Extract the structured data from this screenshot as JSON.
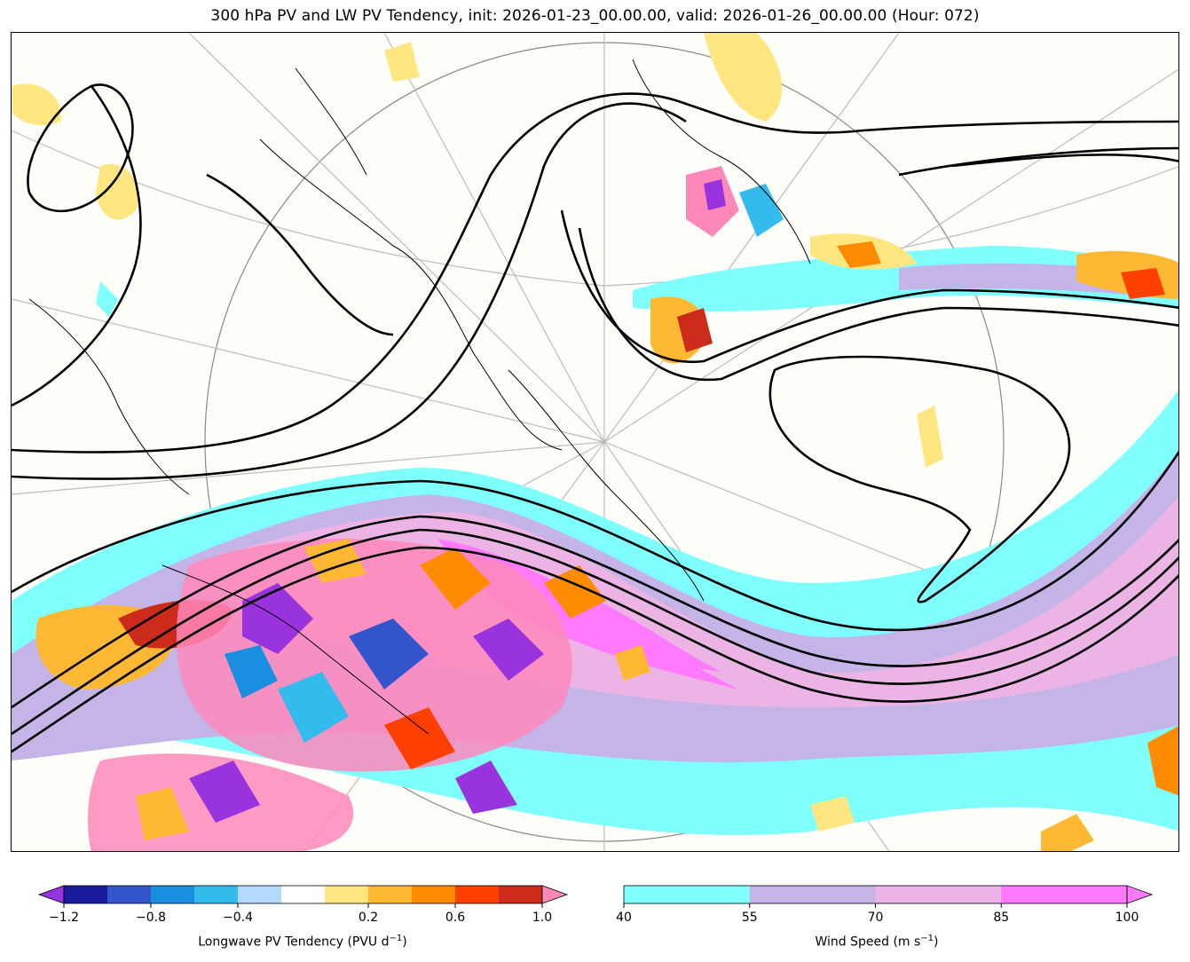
{
  "title": "300 hPa PV and LW PV Tendency, init: 2026-01-23_00.00.00, valid: 2026-01-26_00.00.00 (Hour: 072)",
  "pv_colorbar": {
    "label": "Longwave PV Tendency (PVU d",
    "label_sup": "−1",
    "label_close": ")",
    "ticks": [
      "−1.2",
      "−0.8",
      "−0.4",
      "0.2",
      "0.6",
      "1.0"
    ],
    "colors": [
      "#9933dd",
      "#1a1a9e",
      "#3355cc",
      "#1a8fe0",
      "#33bbee",
      "#b3d9ff",
      "#ffffff",
      "#ffe680",
      "#ffb833",
      "#ff8c00",
      "#ff4000",
      "#cc2a1a",
      "#ff88bb"
    ]
  },
  "wind_colorbar": {
    "label": "Wind Speed (m s",
    "label_sup": "−1",
    "label_close": ")",
    "ticks": [
      "40",
      "55",
      "70",
      "85",
      "100"
    ],
    "colors": [
      "#80ffff",
      "#c4b4e8",
      "#ebb4e4",
      "#ff7aff"
    ]
  }
}
